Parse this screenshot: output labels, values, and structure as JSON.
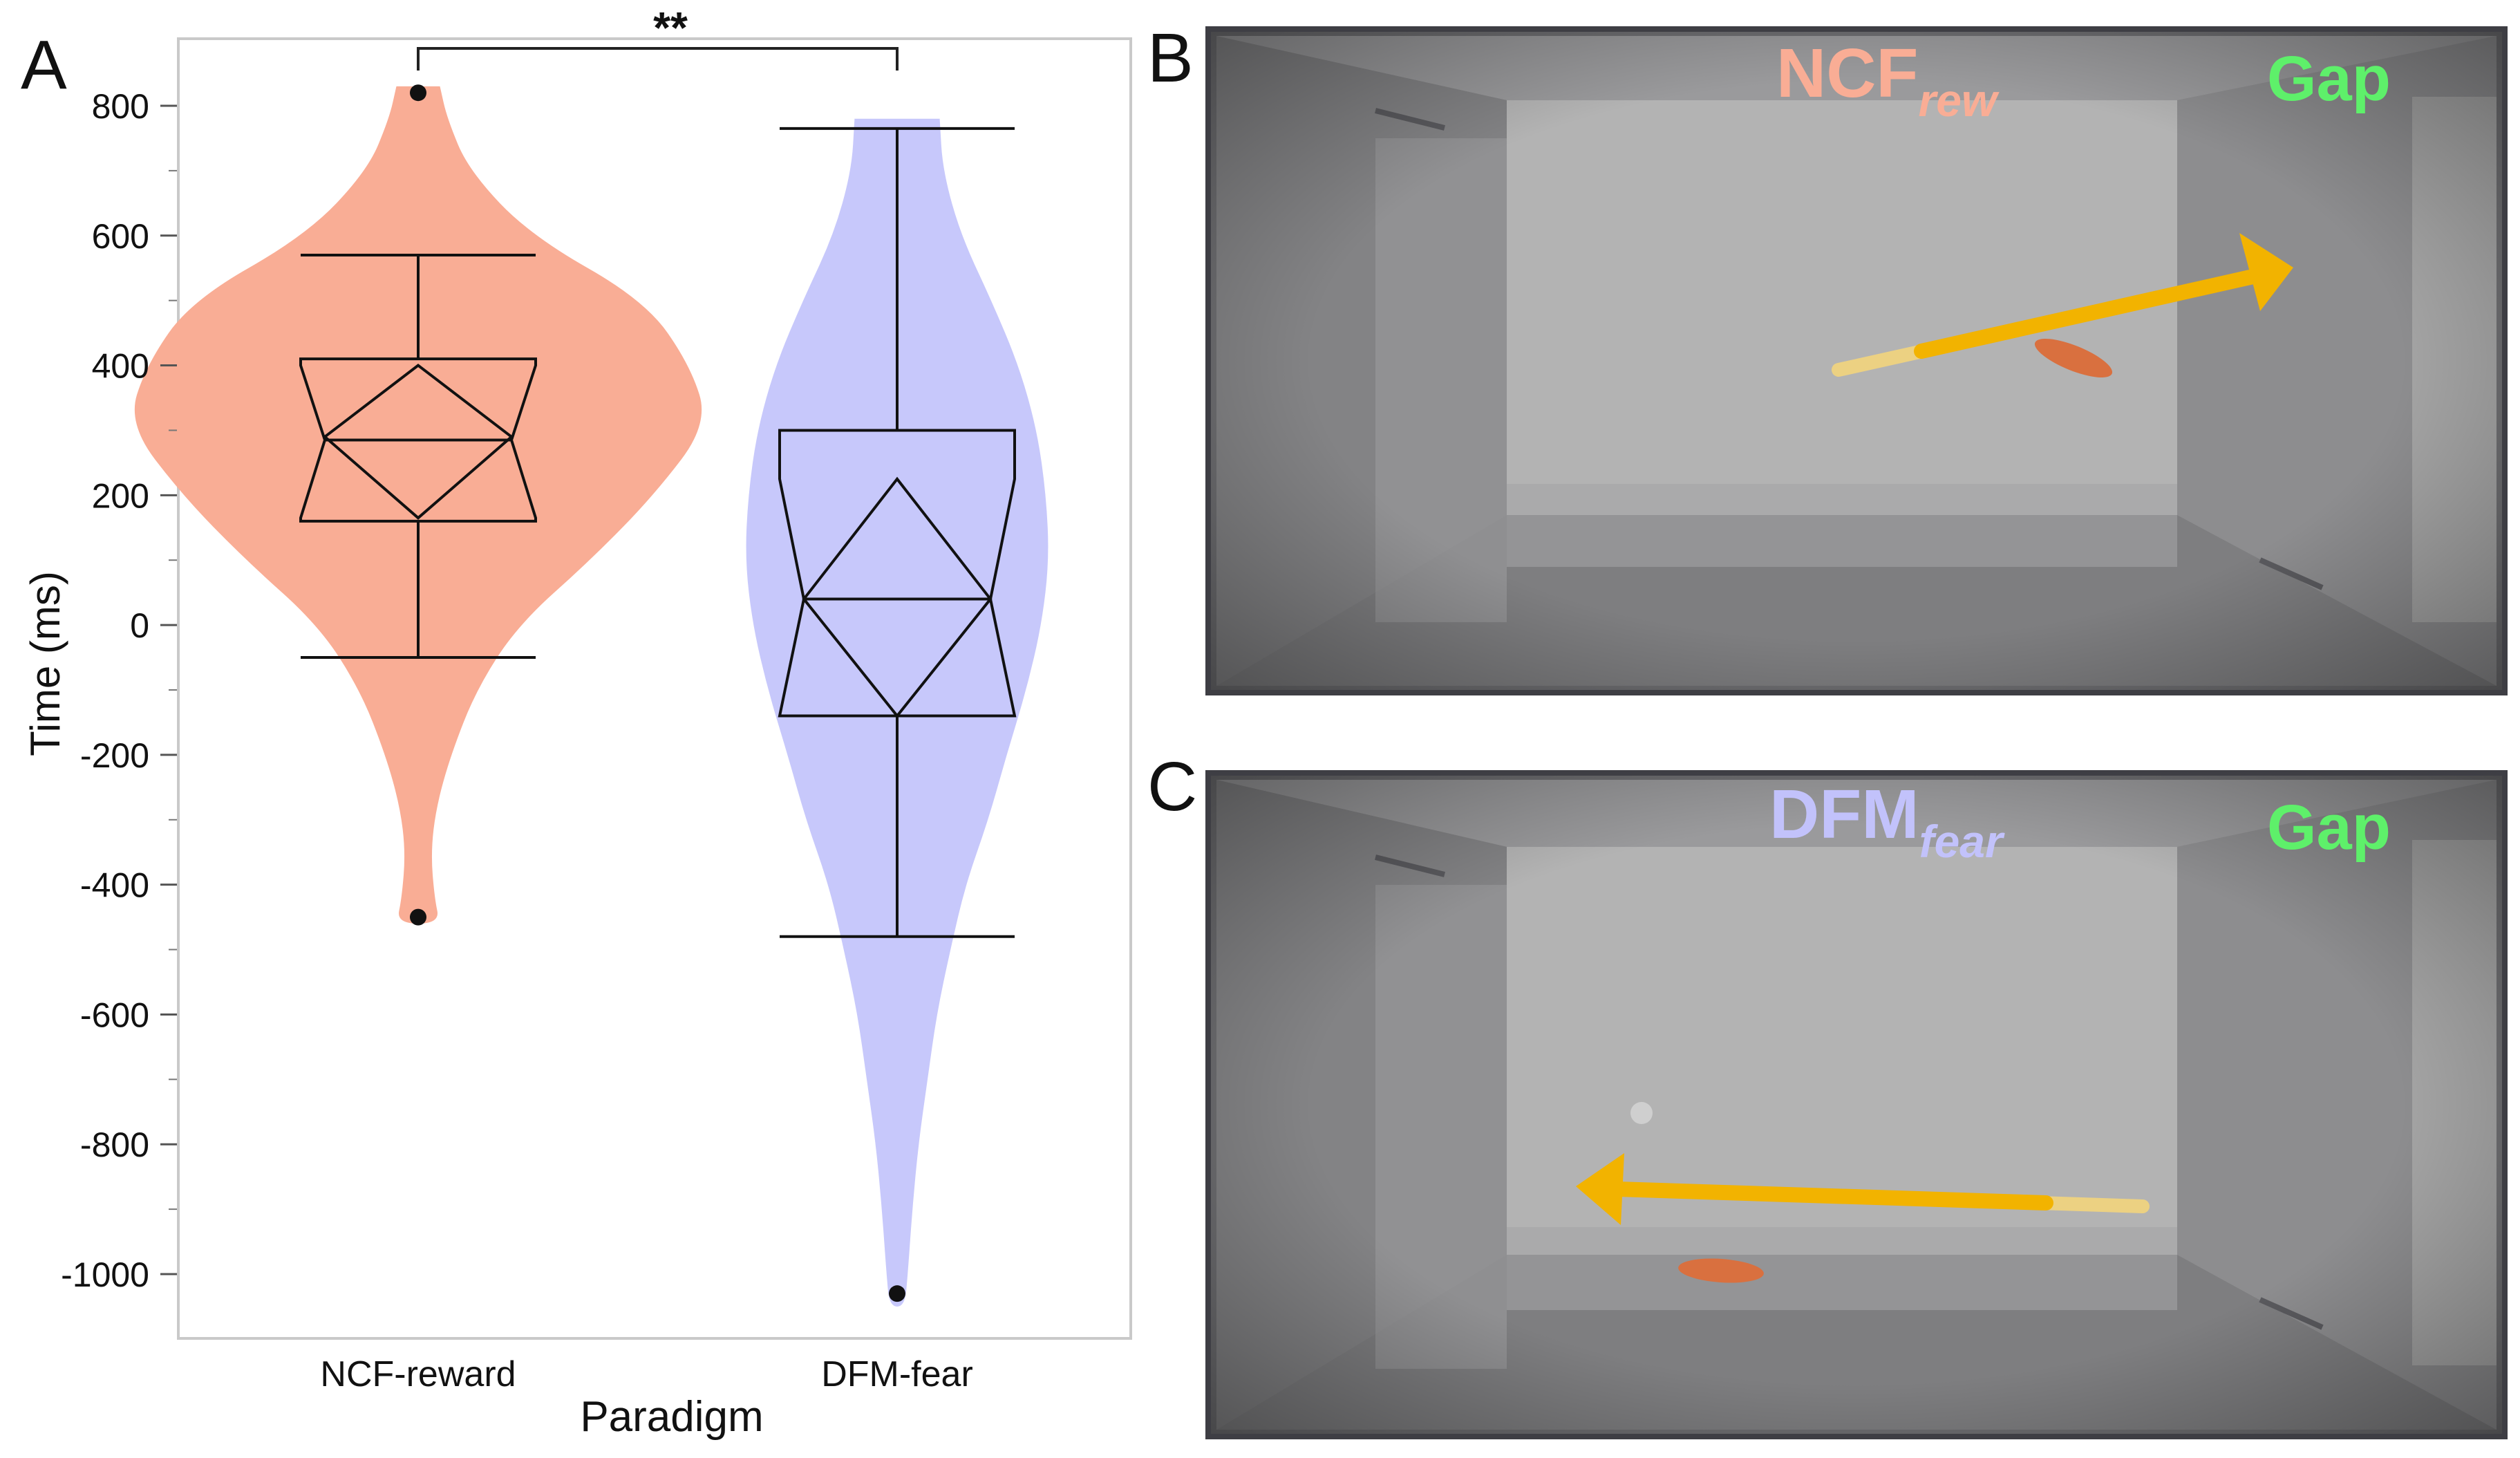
{
  "panel_labels": {
    "a": "A",
    "b": "B",
    "c": "C"
  },
  "colors": {
    "ncf": "#f9ad95",
    "dfm": "#c7c8fb",
    "gap": "#5ef06a",
    "arrow": "#f2b300",
    "mouse": "#d9703f"
  },
  "chart_data": {
    "type": "violin",
    "xlabel": "Paradigm",
    "ylabel": "Time (ms)",
    "ylim": [
      -1100,
      900
    ],
    "yticks": [
      800,
      600,
      400,
      200,
      0,
      -200,
      -400,
      -600,
      -800,
      -1000
    ],
    "yticklabels": [
      "800",
      "600",
      "400",
      "200",
      "0",
      "-200",
      "-400",
      "-600",
      "-800",
      "-1000"
    ],
    "grid": false,
    "significance": {
      "label": "**",
      "between": [
        "NCF-reward",
        "DFM-fear"
      ]
    },
    "categories": [
      "NCF-reward",
      "DFM-fear"
    ],
    "series": [
      {
        "name": "NCF-reward",
        "color_key": "ncf",
        "box": {
          "whisker_low": -50,
          "q1": 160,
          "median": 285,
          "q3": 410,
          "whisker_high": 570,
          "notch_low": 165,
          "notch_high": 400
        },
        "means_diamond": {
          "low": 165,
          "mean": 290,
          "high": 400
        },
        "outliers": [
          820,
          -450
        ],
        "density": [
          [
            830,
            0.12
          ],
          [
            780,
            0.16
          ],
          [
            700,
            0.28
          ],
          [
            600,
            0.62
          ],
          [
            500,
            1.25
          ],
          [
            400,
            1.5
          ],
          [
            310,
            1.6
          ],
          [
            200,
            1.3
          ],
          [
            100,
            0.95
          ],
          [
            0,
            0.55
          ],
          [
            -100,
            0.32
          ],
          [
            -200,
            0.18
          ],
          [
            -280,
            0.1
          ],
          [
            -350,
            0.07
          ],
          [
            -420,
            0.09
          ],
          [
            -460,
            0.12
          ]
        ]
      },
      {
        "name": "DFM-fear",
        "color_key": "dfm",
        "box": {
          "whisker_low": -480,
          "q1": -140,
          "median": 40,
          "q3": 300,
          "whisker_high": 765,
          "notch_low": -140,
          "notch_high": 225
        },
        "means_diamond": {
          "low": -140,
          "mean": 40,
          "high": 225
        },
        "outliers": [
          -1030
        ],
        "density": [
          [
            780,
            0.28
          ],
          [
            700,
            0.3
          ],
          [
            600,
            0.42
          ],
          [
            500,
            0.62
          ],
          [
            400,
            0.8
          ],
          [
            300,
            0.92
          ],
          [
            200,
            0.98
          ],
          [
            100,
            1.0
          ],
          [
            0,
            0.95
          ],
          [
            -100,
            0.85
          ],
          [
            -200,
            0.72
          ],
          [
            -300,
            0.6
          ],
          [
            -400,
            0.45
          ],
          [
            -500,
            0.35
          ],
          [
            -600,
            0.26
          ],
          [
            -700,
            0.2
          ],
          [
            -800,
            0.14
          ],
          [
            -900,
            0.1
          ],
          [
            -1000,
            0.07
          ],
          [
            -1050,
            0.05
          ]
        ]
      }
    ]
  },
  "panel_b": {
    "label_main": "NCF",
    "label_sub": "rew",
    "gap_label": "Gap"
  },
  "panel_c": {
    "label_main": "DFM",
    "label_sub": "fear",
    "gap_label": "Gap"
  }
}
